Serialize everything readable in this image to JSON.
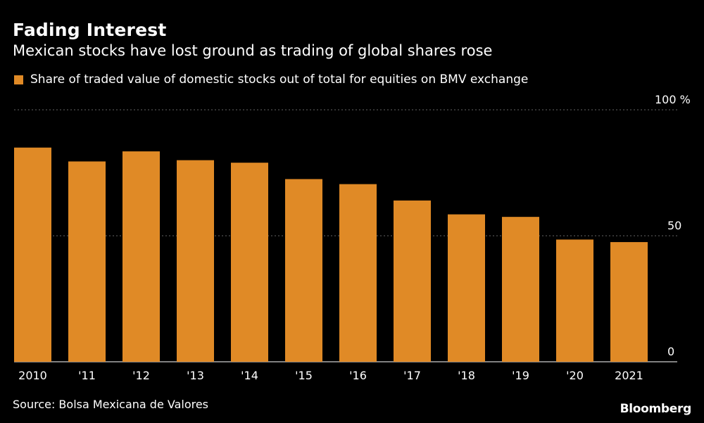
{
  "title": "Fading Interest",
  "subtitle": "Mexican stocks have lost ground as trading of global shares rose",
  "source": "Source: Bolsa Mexicana de Valores",
  "brand": "Bloomberg",
  "colors": {
    "bar": "#E08A26",
    "background": "#000000",
    "grid": "#666666",
    "text": "#FFFFFF"
  },
  "chart_data": {
    "type": "bar",
    "title": "Fading Interest",
    "subtitle": "Mexican stocks have lost ground as trading of global shares rose",
    "legend": [
      "Share of traded value of domestic stocks out of total for equities on BMV exchange"
    ],
    "categories": [
      "2010",
      "'11",
      "'12",
      "'13",
      "'14",
      "'15",
      "'16",
      "'17",
      "'18",
      "'19",
      "'20",
      "2021"
    ],
    "series": [
      {
        "name": "Share of traded value of domestic stocks out of total for equities on BMV exchange",
        "values": [
          85,
          79.5,
          83.5,
          80,
          79,
          72.5,
          70.5,
          64,
          58.5,
          57.5,
          48.5,
          47.5
        ]
      }
    ],
    "ylim": [
      0,
      100
    ],
    "yticks": [
      {
        "value": 0,
        "label": "0"
      },
      {
        "value": 50,
        "label": "50"
      },
      {
        "value": 100,
        "label": "100 %"
      }
    ],
    "grid": true,
    "legend_position": "top-left",
    "xlabel": "",
    "ylabel": "%"
  }
}
